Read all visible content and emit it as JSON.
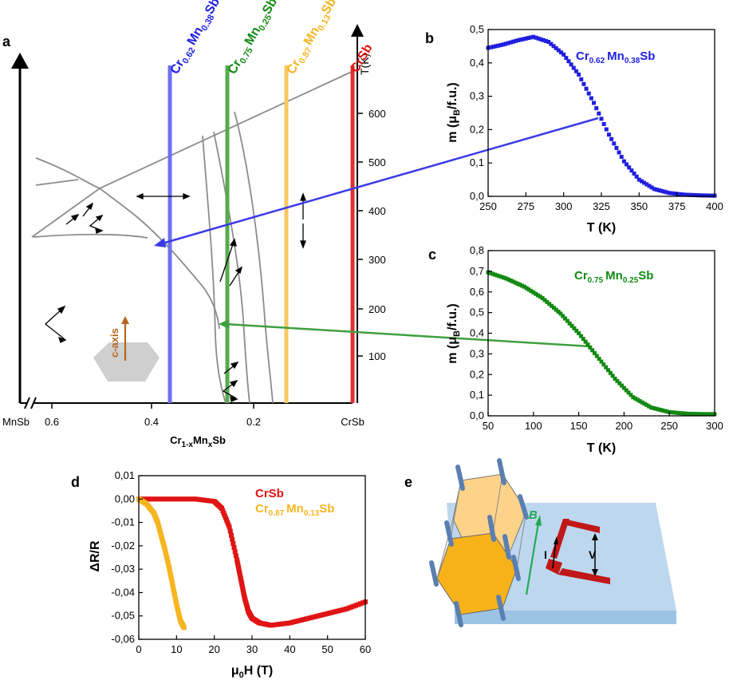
{
  "figure": {
    "panel_labels": [
      "a",
      "b",
      "c",
      "d",
      "e"
    ]
  },
  "colors": {
    "blue": "#1f1fe0",
    "green": "#138a13",
    "yellow": "#f7b521",
    "red": "#e01414",
    "gray": "#808080"
  },
  "chart_data": [
    {
      "panel": "a",
      "type": "diagram",
      "xlabel": "Cr1-xMnxSb",
      "xlabel_parts": {
        "base": "Cr",
        "sub": "1-x",
        "mid": "Mn",
        "sub2": "x",
        "tail": "Sb"
      },
      "ylabel": "T(K)",
      "x_ticks": [
        "MnSb",
        "0.6",
        "0.4",
        "0.2",
        "CrSb"
      ],
      "y_ticks": [
        "100",
        "200",
        "300",
        "400",
        "500",
        "600"
      ],
      "compositions": [
        {
          "el1": "Cr",
          "s1": "0.62",
          "el2": "Mn",
          "s2": "0.38",
          "el3": "Sb",
          "color": "#1f1fe0",
          "x": 0.38
        },
        {
          "el1": "Cr",
          "s1": "0.75",
          "el2": "Mn",
          "s2": "0.25",
          "el3": "Sb",
          "color": "#138a13",
          "x": 0.25
        },
        {
          "el1": "Cr",
          "s1": "0.87",
          "el2": "Mn",
          "s2": "0.13",
          "el3": "Sb",
          "color": "#f7b521",
          "x": 0.13
        },
        {
          "el1": "CrSb",
          "s1": "",
          "el2": "",
          "s2": "",
          "el3": "",
          "color": "#e01414",
          "x": 0.0
        }
      ],
      "inset_label": "c-axis",
      "inset_color": "#b5651d"
    },
    {
      "panel": "b",
      "type": "scatter",
      "label": {
        "el1": "Cr",
        "s1": "0.62",
        "el2": "Mn",
        "s2": "0.38",
        "el3": "Sb"
      },
      "xlabel": "T (K)",
      "ylabel_parts": {
        "a": "m (",
        "b": "μ",
        "sub": "B",
        "c": "/f.u.)"
      },
      "xlim": [
        250,
        400
      ],
      "ylim": [
        0,
        0.5
      ],
      "x_ticks": [
        "250",
        "275",
        "300",
        "325",
        "350",
        "375",
        "400"
      ],
      "y_ticks": [
        "0,0",
        "0,1",
        "0,2",
        "0,3",
        "0,4",
        "0,5"
      ],
      "color": "#1f1fe0",
      "x": [
        250,
        260,
        270,
        280,
        290,
        300,
        310,
        320,
        330,
        340,
        350,
        360,
        370,
        380,
        390,
        400
      ],
      "y": [
        0.445,
        0.455,
        0.468,
        0.478,
        0.463,
        0.425,
        0.365,
        0.28,
        0.185,
        0.105,
        0.05,
        0.022,
        0.01,
        0.005,
        0.003,
        0.002
      ]
    },
    {
      "panel": "c",
      "type": "scatter",
      "label": {
        "el1": "Cr",
        "s1": "0.75",
        "el2": "Mn",
        "s2": "0.25",
        "el3": "Sb"
      },
      "xlabel": "T (K)",
      "ylabel_parts": {
        "a": "m (",
        "b": "μ",
        "sub": "B",
        "c": "/f.u.)"
      },
      "xlim": [
        50,
        300
      ],
      "ylim": [
        0,
        0.8
      ],
      "x_ticks": [
        "50",
        "100",
        "150",
        "200",
        "250",
        "300"
      ],
      "y_ticks": [
        "0,0",
        "0,1",
        "0,2",
        "0,3",
        "0,4",
        "0,5",
        "0,6",
        "0,7",
        "0,8"
      ],
      "color": "#138a13",
      "x": [
        50,
        70,
        90,
        110,
        130,
        150,
        170,
        190,
        210,
        230,
        250,
        270,
        290,
        300
      ],
      "y": [
        0.695,
        0.665,
        0.625,
        0.57,
        0.495,
        0.4,
        0.29,
        0.18,
        0.09,
        0.04,
        0.018,
        0.01,
        0.008,
        0.008
      ]
    },
    {
      "panel": "d",
      "type": "scatter",
      "xlabel_parts": {
        "a": "μ",
        "sub": "0",
        "b": "H (T)"
      },
      "ylabel": "ΔR/R",
      "xlim": [
        0,
        60
      ],
      "ylim": [
        -0.06,
        0.01
      ],
      "x_ticks": [
        "0",
        "10",
        "20",
        "30",
        "40",
        "50",
        "60"
      ],
      "y_ticks": [
        "0,01",
        "0,00",
        "-0,01",
        "-0,02",
        "-0,03",
        "-0,04",
        "-0,05",
        "-0,06"
      ],
      "series": [
        {
          "name": "CrSb",
          "color": "#e01414",
          "x": [
            0,
            5,
            10,
            15,
            20,
            22,
            24,
            26,
            27,
            28,
            29,
            30,
            32,
            35,
            40,
            45,
            50,
            55,
            60
          ],
          "y": [
            0.0,
            0.0,
            0.0,
            0.0,
            -0.001,
            -0.004,
            -0.012,
            -0.026,
            -0.034,
            -0.042,
            -0.048,
            -0.051,
            -0.053,
            -0.054,
            -0.053,
            -0.051,
            -0.049,
            -0.047,
            -0.044
          ]
        },
        {
          "name": "Cr0.87Mn0.13Sb",
          "name_parts": {
            "el1": "Cr",
            "s1": "0.87",
            "el2": "Mn",
            "s2": "0.13",
            "el3": "Sb"
          },
          "color": "#f7b521",
          "x": [
            0,
            2,
            4,
            5,
            6,
            7,
            8,
            9,
            10,
            11,
            12
          ],
          "y": [
            0.0,
            -0.002,
            -0.006,
            -0.01,
            -0.016,
            -0.022,
            -0.029,
            -0.037,
            -0.045,
            -0.052,
            -0.055
          ]
        }
      ]
    },
    {
      "panel": "e",
      "type": "diagram",
      "labels": {
        "field": "B",
        "current": "I",
        "voltage": "V"
      }
    }
  ]
}
